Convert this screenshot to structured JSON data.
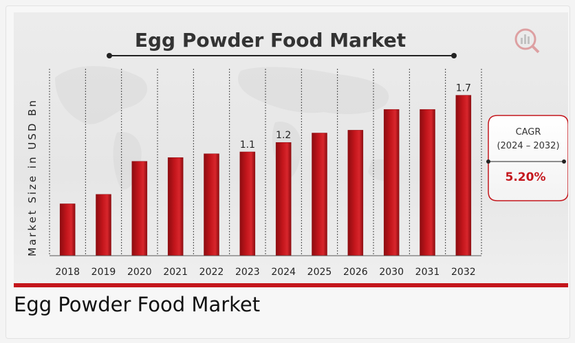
{
  "chart_data": {
    "type": "bar",
    "title": "Egg Powder Food Market",
    "ylabel": "Market Size in USD Bn",
    "categories": [
      "2018",
      "2019",
      "2020",
      "2021",
      "2022",
      "2023",
      "2024",
      "2025",
      "2026",
      "2030",
      "2031",
      "2032"
    ],
    "values": [
      0.55,
      0.65,
      1.0,
      1.04,
      1.08,
      1.1,
      1.2,
      1.3,
      1.33,
      1.55,
      1.55,
      1.7
    ],
    "data_labels": {
      "5": "1.1",
      "6": "1.2",
      "11": "1.7"
    },
    "colors": {
      "bar": "#c4161c",
      "bar_dark": "#8d0c10",
      "accent": "#c4161c"
    }
  },
  "cagr": {
    "label": "CAGR",
    "period": "(2024 – 2032)",
    "value": "5.20%"
  },
  "caption": "Egg Powder Food Market"
}
